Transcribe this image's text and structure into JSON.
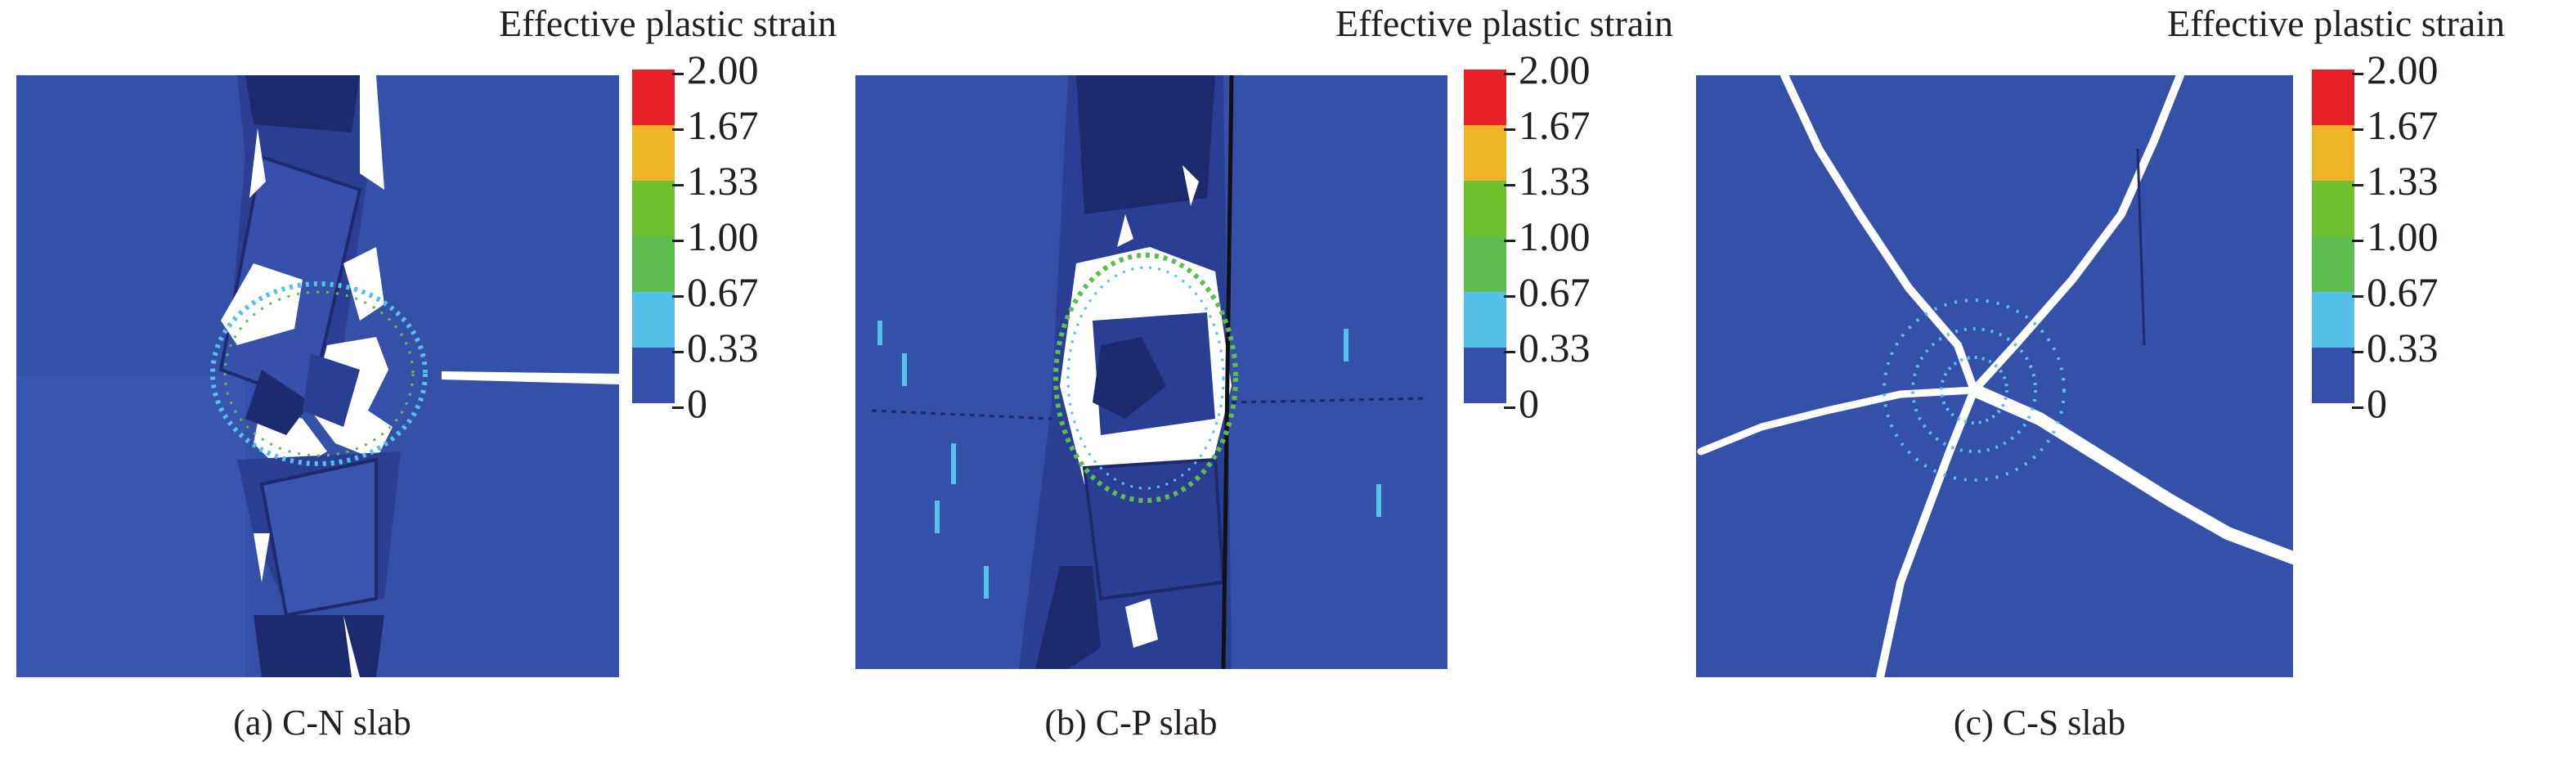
{
  "legend_title": "Effective plastic strain",
  "colorbar": {
    "ticks": [
      "2.00",
      "1.67",
      "1.33",
      "1.00",
      "0.67",
      "0.33",
      "0"
    ],
    "bands": [
      "#e82128",
      "#efb425",
      "#6ec12c",
      "#5ebd4f",
      "#55c0ea",
      "#3450a9"
    ]
  },
  "colors": {
    "slab": "#3450a9",
    "fragment_dark": "#1d2b6e",
    "crack": "#ffffff"
  },
  "panels": [
    {
      "caption": "(a) C-N slab"
    },
    {
      "caption": "(b) C-P slab"
    },
    {
      "caption": "(c) C-S slab"
    }
  ]
}
